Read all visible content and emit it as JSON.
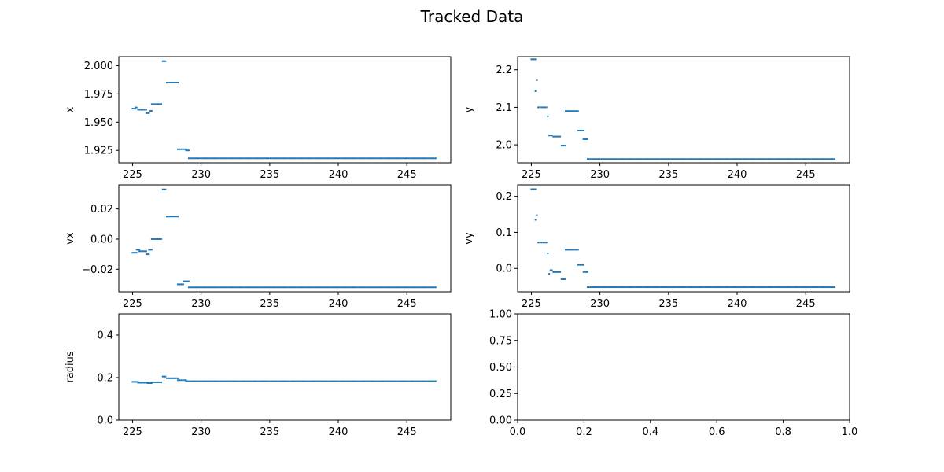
{
  "figure_title": "Tracked Data",
  "colors": {
    "marker": "#1f77b4",
    "axes": "#000000",
    "background": "#ffffff"
  },
  "chart_data": [
    {
      "id": "x",
      "type": "scatter",
      "title": "",
      "xlabel": "",
      "ylabel": "x",
      "xlim": [
        224.0,
        248.2
      ],
      "ylim": [
        1.914,
        2.008
      ],
      "xticks": [
        225,
        230,
        235,
        240,
        245
      ],
      "xticklabels": [
        "225",
        "230",
        "235",
        "240",
        "245"
      ],
      "yticks": [
        1.925,
        1.95,
        1.975,
        2.0
      ],
      "yticklabels": [
        "1.925",
        "1.950",
        "1.975",
        "2.000"
      ],
      "segments": [
        {
          "x0": 225.0,
          "x1": 225.2,
          "y": 1.962
        },
        {
          "x0": 225.2,
          "x1": 225.3,
          "y": 1.963
        },
        {
          "x0": 225.4,
          "x1": 226.0,
          "y": 1.961
        },
        {
          "x0": 226.0,
          "x1": 226.2,
          "y": 1.958
        },
        {
          "x0": 226.3,
          "x1": 226.4,
          "y": 1.96
        },
        {
          "x0": 226.4,
          "x1": 227.1,
          "y": 1.966
        },
        {
          "x0": 227.2,
          "x1": 227.4,
          "y": 2.004
        },
        {
          "x0": 227.5,
          "x1": 228.3,
          "y": 1.985
        },
        {
          "x0": 228.3,
          "x1": 228.9,
          "y": 1.926
        },
        {
          "x0": 228.9,
          "x1": 229.1,
          "y": 1.925
        },
        {
          "x0": 229.1,
          "x1": 247.1,
          "y": 1.918
        }
      ]
    },
    {
      "id": "y",
      "type": "scatter",
      "title": "",
      "xlabel": "",
      "ylabel": "y",
      "xlim": [
        224.0,
        248.2
      ],
      "ylim": [
        1.952,
        2.235
      ],
      "xticks": [
        225,
        230,
        235,
        240,
        245
      ],
      "xticklabels": [
        "225",
        "230",
        "235",
        "240",
        "245"
      ],
      "yticks": [
        2.0,
        2.1,
        2.2
      ],
      "yticklabels": [
        "2.0",
        "2.1",
        "2.2"
      ],
      "segments": [
        {
          "x0": 225.0,
          "x1": 225.3,
          "y": 2.228
        },
        {
          "x0": 225.3,
          "x1": 225.3,
          "y": 2.143
        },
        {
          "x0": 225.4,
          "x1": 225.4,
          "y": 2.172
        },
        {
          "x0": 225.5,
          "x1": 226.1,
          "y": 2.1
        },
        {
          "x0": 226.2,
          "x1": 226.2,
          "y": 2.076
        },
        {
          "x0": 226.3,
          "x1": 226.5,
          "y": 2.025
        },
        {
          "x0": 226.6,
          "x1": 227.1,
          "y": 2.022
        },
        {
          "x0": 227.2,
          "x1": 227.5,
          "y": 1.998
        },
        {
          "x0": 227.5,
          "x1": 228.4,
          "y": 2.09
        },
        {
          "x0": 228.4,
          "x1": 228.8,
          "y": 2.038
        },
        {
          "x0": 228.8,
          "x1": 229.1,
          "y": 2.015
        },
        {
          "x0": 229.1,
          "x1": 247.1,
          "y": 1.962
        }
      ]
    },
    {
      "id": "vx",
      "type": "scatter",
      "title": "",
      "xlabel": "",
      "ylabel": "vx",
      "xlim": [
        224.0,
        248.2
      ],
      "ylim": [
        -0.035,
        0.036
      ],
      "xticks": [
        225,
        230,
        235,
        240,
        245
      ],
      "xticklabels": [
        "225",
        "230",
        "235",
        "240",
        "245"
      ],
      "yticks": [
        -0.02,
        0.0,
        0.02
      ],
      "yticklabels": [
        "−0.02",
        "0.00",
        "0.02"
      ],
      "segments": [
        {
          "x0": 225.0,
          "x1": 225.3,
          "y": -0.009
        },
        {
          "x0": 225.3,
          "x1": 225.5,
          "y": -0.007
        },
        {
          "x0": 225.5,
          "x1": 226.0,
          "y": -0.008
        },
        {
          "x0": 226.0,
          "x1": 226.2,
          "y": -0.01
        },
        {
          "x0": 226.2,
          "x1": 226.4,
          "y": -0.007
        },
        {
          "x0": 226.4,
          "x1": 227.1,
          "y": 0.0
        },
        {
          "x0": 227.2,
          "x1": 227.4,
          "y": 0.033
        },
        {
          "x0": 227.5,
          "x1": 228.3,
          "y": 0.015
        },
        {
          "x0": 228.3,
          "x1": 228.7,
          "y": -0.03
        },
        {
          "x0": 228.7,
          "x1": 229.1,
          "y": -0.028
        },
        {
          "x0": 229.1,
          "x1": 247.1,
          "y": -0.032
        }
      ]
    },
    {
      "id": "vy",
      "type": "scatter",
      "title": "",
      "xlabel": "",
      "ylabel": "vy",
      "xlim": [
        224.0,
        248.2
      ],
      "ylim": [
        -0.065,
        0.232
      ],
      "xticks": [
        225,
        230,
        235,
        240,
        245
      ],
      "xticklabels": [
        "225",
        "230",
        "235",
        "240",
        "245"
      ],
      "yticks": [
        0.0,
        0.1,
        0.2
      ],
      "yticklabels": [
        "0.0",
        "0.1",
        "0.2"
      ],
      "segments": [
        {
          "x0": 225.0,
          "x1": 225.3,
          "y": 0.22
        },
        {
          "x0": 225.3,
          "x1": 225.3,
          "y": 0.135
        },
        {
          "x0": 225.4,
          "x1": 225.4,
          "y": 0.148
        },
        {
          "x0": 225.5,
          "x1": 226.1,
          "y": 0.072
        },
        {
          "x0": 226.2,
          "x1": 226.2,
          "y": 0.042
        },
        {
          "x0": 226.3,
          "x1": 226.3,
          "y": -0.015
        },
        {
          "x0": 226.4,
          "x1": 226.5,
          "y": -0.005
        },
        {
          "x0": 226.6,
          "x1": 227.1,
          "y": -0.01
        },
        {
          "x0": 227.2,
          "x1": 227.5,
          "y": -0.03
        },
        {
          "x0": 227.5,
          "x1": 228.4,
          "y": 0.052
        },
        {
          "x0": 228.4,
          "x1": 228.8,
          "y": 0.01
        },
        {
          "x0": 228.8,
          "x1": 229.1,
          "y": -0.01
        },
        {
          "x0": 229.1,
          "x1": 247.1,
          "y": -0.052
        }
      ]
    },
    {
      "id": "radius",
      "type": "scatter",
      "title": "",
      "xlabel": "",
      "ylabel": "radius",
      "xlim": [
        224.0,
        248.2
      ],
      "ylim": [
        0.0,
        0.5
      ],
      "xticks": [
        225,
        230,
        235,
        240,
        245
      ],
      "xticklabels": [
        "225",
        "230",
        "235",
        "240",
        "245"
      ],
      "yticks": [
        0.0,
        0.2,
        0.4
      ],
      "yticklabels": [
        "0.0",
        "0.2",
        "0.4"
      ],
      "segments": [
        {
          "x0": 225.0,
          "x1": 225.4,
          "y": 0.18
        },
        {
          "x0": 225.4,
          "x1": 226.1,
          "y": 0.176
        },
        {
          "x0": 226.1,
          "x1": 226.4,
          "y": 0.174
        },
        {
          "x0": 226.4,
          "x1": 227.1,
          "y": 0.178
        },
        {
          "x0": 227.2,
          "x1": 227.4,
          "y": 0.205
        },
        {
          "x0": 227.5,
          "x1": 228.3,
          "y": 0.197
        },
        {
          "x0": 228.3,
          "x1": 228.9,
          "y": 0.188
        },
        {
          "x0": 228.9,
          "x1": 247.1,
          "y": 0.183
        }
      ]
    },
    {
      "id": "empty",
      "type": "scatter",
      "title": "",
      "xlabel": "",
      "ylabel": "",
      "xlim": [
        0.0,
        1.0
      ],
      "ylim": [
        0.0,
        1.0
      ],
      "xticks": [
        0.0,
        0.2,
        0.4,
        0.6,
        0.8,
        1.0
      ],
      "xticklabels": [
        "0.0",
        "0.2",
        "0.4",
        "0.6",
        "0.8",
        "1.0"
      ],
      "yticks": [
        0.0,
        0.25,
        0.5,
        0.75,
        1.0
      ],
      "yticklabels": [
        "0.00",
        "0.25",
        "0.50",
        "0.75",
        "1.00"
      ],
      "segments": []
    }
  ]
}
